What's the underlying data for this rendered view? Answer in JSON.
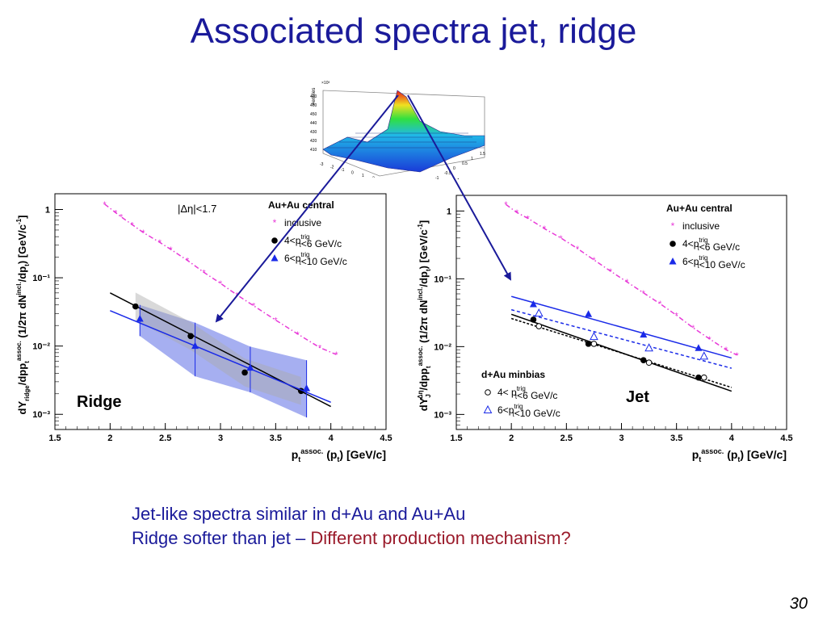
{
  "slide": {
    "title": "Associated spectra jet, ridge",
    "bullets": [
      {
        "text": "Jet-like spectra similar in d+Au and Au+Au"
      },
      {
        "text": "Ridge softer than jet – ",
        "highlight": "Different production mechanism?"
      }
    ],
    "page_number": "30"
  },
  "surface_plot": {
    "zlabel": "#entries",
    "zscale": "×10³",
    "zticks": [
      "410",
      "420",
      "430",
      "440",
      "450",
      "460",
      "470"
    ],
    "xlabel": "Δφ",
    "ylabel": "Δη",
    "xticks": [
      "-3",
      "-2",
      "-1",
      "0",
      "1",
      "2",
      "3"
    ],
    "yticks": [
      "-1.5",
      "-1",
      "-0.5",
      "0",
      "0.5",
      "1",
      "1.5"
    ]
  },
  "chart_data": [
    {
      "type": "scatter",
      "name": "ridge",
      "ylabel_main": "dY",
      "ylabel_sub": "ridge",
      "ylabel_rest": "/dp",
      "ylabel_full": "dY_ridge/dp_t^assoc. (1/2π dN^incl./dp_t) [GeV/c⁻¹]",
      "xlabel": "p_t^assoc. (p_t) [GeV/c]",
      "xlim": [
        1.5,
        4.5
      ],
      "ylim": [
        0.0006,
        1.7
      ],
      "log_y": true,
      "xticks": [
        "1.5",
        "2",
        "2.5",
        "3",
        "3.5",
        "4",
        "4.5"
      ],
      "yticks": [
        "10⁻³",
        "10⁻²",
        "10⁻¹",
        "1"
      ],
      "label": "Ridge",
      "cut_label": "|Δη|<1.7",
      "legend": {
        "title": "Au+Au central",
        "items": [
          "inclusive",
          "4<p_t^trig<6 GeV/c",
          "6<p_t^trig<10 GeV/c"
        ]
      },
      "series": [
        {
          "name": "inclusive",
          "marker": "star",
          "color": "#e83bd8",
          "x": [
            1.95,
            2.05,
            2.1,
            2.2,
            2.3,
            2.45,
            2.55,
            2.7,
            2.85,
            3.0,
            3.15,
            3.3,
            3.5,
            3.7,
            3.9,
            4.05
          ],
          "y": [
            1.2,
            0.9,
            0.78,
            0.6,
            0.46,
            0.33,
            0.26,
            0.18,
            0.12,
            0.083,
            0.056,
            0.039,
            0.024,
            0.015,
            0.0095,
            0.0075
          ]
        },
        {
          "name": "4<p_t^trig<6 GeV/c",
          "marker": "circle",
          "color": "#000000",
          "x": [
            2.23,
            2.73,
            3.22,
            3.73
          ],
          "y": [
            0.038,
            0.014,
            0.0041,
            0.0022
          ],
          "fit": [
            [
              2.0,
              0.06
            ],
            [
              4.0,
              0.0013
            ]
          ]
        },
        {
          "name": "6<p_t^trig<10 GeV/c",
          "marker": "triangle",
          "color": "#1a2ae8",
          "x": [
            2.27,
            2.77,
            3.27,
            3.78
          ],
          "y": [
            0.025,
            0.01,
            0.0048,
            0.0024
          ],
          "err_lo": [
            0.014,
            0.0036,
            0.0021,
            0.0009
          ],
          "err_hi": [
            0.04,
            0.022,
            0.0098,
            0.0062
          ],
          "fit": [
            [
              2.0,
              0.033
            ],
            [
              4.0,
              0.0015
            ]
          ]
        }
      ],
      "band_color": "#6a7ae8"
    },
    {
      "type": "scatter",
      "name": "jet",
      "ylabel_main": "dY",
      "ylabel_sub": "J",
      "ylabel_sup": "Δη",
      "ylabel_rest": "/dp",
      "ylabel_full": "dY_J^Δη/dp_t^assoc. (1/2π dN^incl./dp_t) [GeV/c⁻¹]",
      "xlabel": "p_t^assoc. (p_t) [GeV/c]",
      "xlim": [
        1.5,
        4.5
      ],
      "ylim": [
        0.0006,
        1.7
      ],
      "log_y": true,
      "xticks": [
        "1.5",
        "2",
        "2.5",
        "3",
        "3.5",
        "4",
        "4.5"
      ],
      "yticks": [
        "10⁻³",
        "10⁻²",
        "10⁻¹",
        "1"
      ],
      "label": "Jet",
      "legend": {
        "title": "Au+Au central",
        "items": [
          "inclusive",
          "4<p_t^trig<6 GeV/c",
          "6<p_t^trig<10 GeV/c"
        ]
      },
      "legend2": {
        "title": "d+Au minbias",
        "items": [
          "4< p_t^trig<6 GeV/c",
          "6<p_t^trig<10 GeV/c"
        ]
      },
      "series": [
        {
          "name": "inclusive",
          "marker": "star",
          "color": "#e83bd8",
          "x": [
            1.95,
            2.05,
            2.15,
            2.3,
            2.45,
            2.6,
            2.75,
            2.9,
            3.05,
            3.2,
            3.35,
            3.5,
            3.65,
            3.8,
            3.95,
            4.05
          ],
          "y": [
            1.25,
            0.95,
            0.78,
            0.55,
            0.4,
            0.28,
            0.19,
            0.13,
            0.09,
            0.062,
            0.043,
            0.029,
            0.019,
            0.013,
            0.009,
            0.0075
          ]
        },
        {
          "name": "Au+Au 4<p_t^trig<6 GeV/c",
          "marker": "circle",
          "color": "#000000",
          "x": [
            2.2,
            2.7,
            3.2,
            3.7
          ],
          "y": [
            0.025,
            0.011,
            0.0063,
            0.0035
          ],
          "fit": [
            [
              2.0,
              0.03
            ],
            [
              4.0,
              0.0022
            ]
          ]
        },
        {
          "name": "Au+Au 6<p_t^trig<10 GeV/c",
          "marker": "triangle",
          "color": "#1a2ae8",
          "x": [
            2.2,
            2.7,
            3.2,
            3.7
          ],
          "y": [
            0.042,
            0.03,
            0.015,
            0.0095
          ],
          "fit": [
            [
              2.0,
              0.055
            ],
            [
              4.0,
              0.0068
            ]
          ]
        },
        {
          "name": "d+Au 4< p_t^trig<6 GeV/c",
          "marker": "circle-open",
          "color": "#000000",
          "x": [
            2.25,
            2.75,
            3.25,
            3.75
          ],
          "y": [
            0.02,
            0.011,
            0.0058,
            0.0035
          ],
          "fit": [
            [
              2.0,
              0.026
            ],
            [
              4.0,
              0.0025
            ]
          ]
        },
        {
          "name": "d+Au 6<p_t^trig<10 GeV/c",
          "marker": "triangle-open",
          "color": "#1a2ae8",
          "x": [
            2.25,
            2.75,
            3.25,
            3.75
          ],
          "y": [
            0.031,
            0.014,
            0.0095,
            0.0072
          ],
          "fit": [
            [
              2.0,
              0.035
            ],
            [
              4.0,
              0.0048
            ]
          ]
        }
      ]
    }
  ]
}
